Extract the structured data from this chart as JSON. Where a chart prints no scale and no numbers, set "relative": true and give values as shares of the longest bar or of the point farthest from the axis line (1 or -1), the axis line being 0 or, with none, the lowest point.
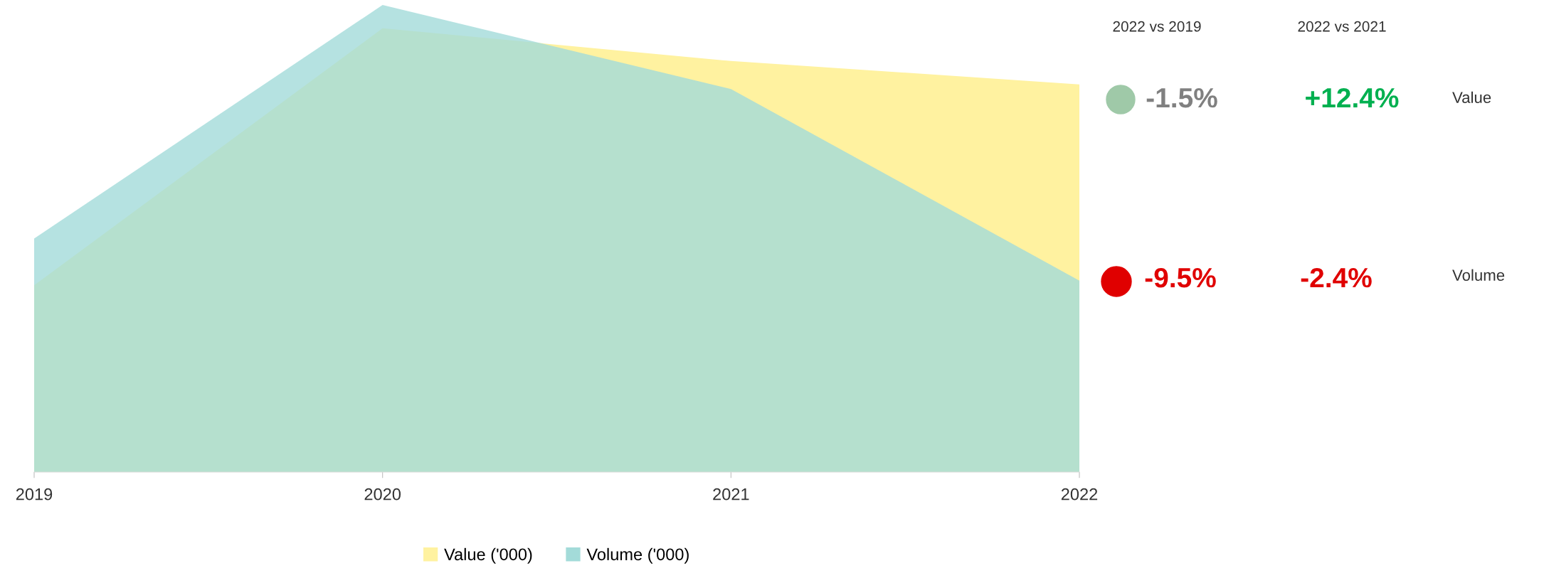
{
  "chart_data": [
    {
      "type": "area",
      "relative": true,
      "categories": [
        "2019",
        "2020",
        "2021",
        "2022"
      ],
      "series": [
        {
          "name": "Value ('000)",
          "color": "#fff2a0",
          "values": [
            0.4,
            0.95,
            0.88,
            0.83
          ]
        },
        {
          "name": "Volume ('000)",
          "color": "#a3dbd9",
          "values": [
            0.5,
            1.0,
            0.82,
            0.41
          ]
        }
      ],
      "legend": "bottom",
      "grid": false
    },
    {
      "type": "other",
      "annotations": [
        "2022 vs 2019",
        "2022 vs 2021",
        "-1.5%",
        "+12.4%",
        "Value",
        "-9.5%",
        "-2.4%",
        "Volume"
      ],
      "colors": [
        "#333333",
        "#333333",
        "#808080",
        "#00b050",
        "#333333",
        "#e00000",
        "#e00000",
        "#333333"
      ]
    }
  ]
}
